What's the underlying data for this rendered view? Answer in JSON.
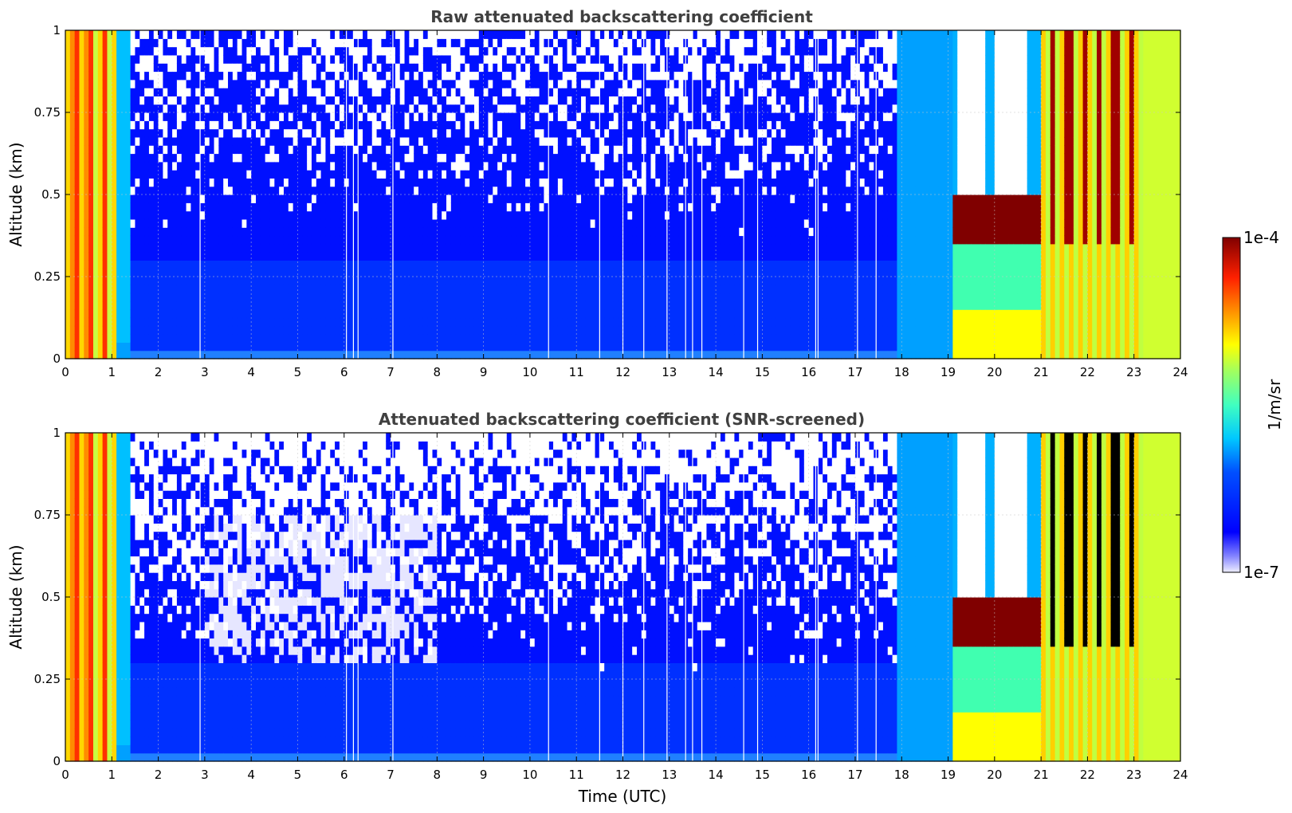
{
  "chart_data": [
    {
      "type": "heatmap",
      "title": "Raw attenuated backscattering coefficient",
      "xlabel": "",
      "ylabel": "Altitude (km)",
      "xlim": [
        0,
        24
      ],
      "ylim": [
        0,
        1
      ],
      "xticks": [
        0,
        1,
        2,
        3,
        4,
        5,
        6,
        7,
        8,
        9,
        10,
        11,
        12,
        13,
        14,
        15,
        16,
        17,
        18,
        19,
        20,
        21,
        22,
        23,
        24
      ],
      "yticks": [
        0,
        0.25,
        0.5,
        0.75,
        1
      ],
      "ytick_labels": [
        "0",
        "0.25",
        "0.5",
        "0.75",
        "1"
      ],
      "grid": true,
      "screened": false
    },
    {
      "type": "heatmap",
      "title": "Attenuated backscattering coefficient (SNR-screened)",
      "xlabel": "Time (UTC)",
      "ylabel": "Altitude (km)",
      "xlim": [
        0,
        24
      ],
      "ylim": [
        0,
        1
      ],
      "xticks": [
        0,
        1,
        2,
        3,
        4,
        5,
        6,
        7,
        8,
        9,
        10,
        11,
        12,
        13,
        14,
        15,
        16,
        17,
        18,
        19,
        20,
        21,
        22,
        23,
        24
      ],
      "yticks": [
        0,
        0.25,
        0.5,
        0.75,
        1
      ],
      "ytick_labels": [
        "0",
        "0.25",
        "0.5",
        "0.75",
        "1"
      ],
      "grid": true,
      "screened": true
    }
  ],
  "colorbar": {
    "label": "1/m/sr",
    "max_label": "1e-4",
    "min_label": "1e-7",
    "scale": "log",
    "colormap": "jet"
  }
}
